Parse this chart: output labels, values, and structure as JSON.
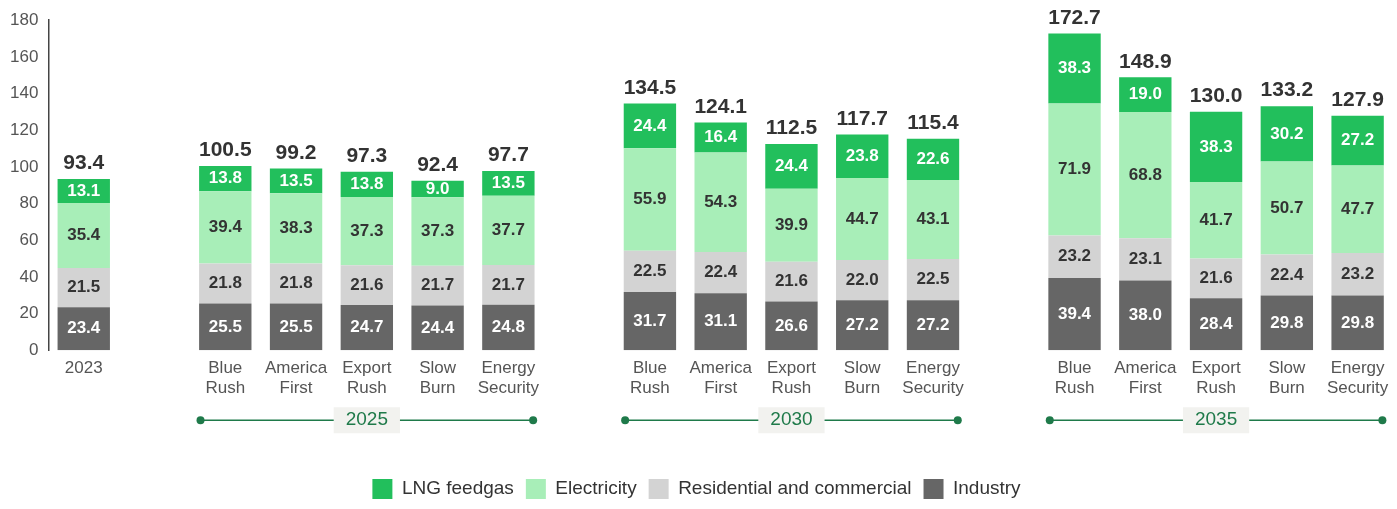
{
  "chart_data": {
    "type": "bar",
    "stacked": true,
    "legend": "bottom",
    "grid": false,
    "categories": [
      "2023",
      null,
      "Blue Rush",
      "America First",
      "Export Rush",
      "Slow Burn",
      "Energy Security",
      null,
      "Blue Rush",
      "America First",
      "Export Rush",
      "Slow Burn",
      "Energy Security",
      null,
      "Blue Rush",
      "America First",
      "Export Rush",
      "Slow Burn",
      "Energy Security"
    ],
    "series": [
      {
        "name": "Industry",
        "color": "#666666",
        "values": [
          23.4,
          null,
          25.5,
          25.5,
          24.7,
          24.4,
          24.8,
          null,
          31.7,
          31.1,
          26.6,
          27.2,
          27.2,
          null,
          39.4,
          38.0,
          28.4,
          29.8,
          29.8
        ],
        "value_labels": [
          "23.4",
          null,
          "25.5",
          "25.5",
          "24.7",
          "24.4",
          "24.8",
          null,
          "31.7",
          "31.1",
          "26.6",
          "27.2",
          "27.2",
          null,
          "39.4",
          "38.0",
          "28.4",
          "29.8",
          "29.8"
        ]
      },
      {
        "name": "Residential and commercial",
        "color": "#d3d3d3",
        "values": [
          21.5,
          null,
          21.8,
          21.8,
          21.6,
          21.7,
          21.7,
          null,
          22.5,
          22.4,
          21.6,
          22.0,
          22.5,
          null,
          23.2,
          23.1,
          21.6,
          22.4,
          23.2
        ],
        "value_labels": [
          "21.5",
          null,
          "21.8",
          "21.8",
          "21.6",
          "21.7",
          "21.7",
          null,
          "22.5",
          "22.4",
          "21.6",
          "22.0",
          "22.5",
          null,
          "23.2",
          "23.1",
          "21.6",
          "22.4",
          "23.2"
        ]
      },
      {
        "name": "Electricity",
        "color": "#a8eeb8",
        "values": [
          35.4,
          null,
          39.4,
          38.3,
          37.3,
          37.3,
          37.7,
          null,
          55.9,
          54.3,
          39.9,
          44.7,
          43.1,
          null,
          71.9,
          68.8,
          41.7,
          50.7,
          47.7
        ],
        "value_labels": [
          "35.4",
          null,
          "39.4",
          "38.3",
          "37.3",
          "37.3",
          "37.7",
          null,
          "55.9",
          "54.3",
          "39.9",
          "44.7",
          "43.1",
          null,
          "71.9",
          "68.8",
          "41.7",
          "50.7",
          "47.7"
        ]
      },
      {
        "name": "LNG feedgas",
        "color": "#22bf5c",
        "values": [
          13.1,
          null,
          13.8,
          13.5,
          13.8,
          9.0,
          13.5,
          null,
          24.4,
          16.4,
          24.4,
          23.8,
          22.6,
          null,
          38.3,
          19.0,
          38.3,
          30.2,
          27.2
        ],
        "value_labels": [
          "13.1",
          null,
          "13.8",
          "13.5",
          "13.8",
          "9.0",
          "13.5",
          null,
          "24.4",
          "16.4",
          "24.4",
          "23.8",
          "22.6",
          null,
          "38.3",
          "19.0",
          "38.3",
          "30.2",
          "27.2"
        ]
      }
    ],
    "totals": [
      "93.4",
      null,
      "100.5",
      "99.2",
      "97.3",
      "92.4",
      "97.7",
      null,
      "134.5",
      "124.1",
      "112.5",
      "117.7",
      "115.4",
      null,
      "172.7",
      "148.9",
      "130.0",
      "133.2",
      "127.9"
    ],
    "annotations": [
      "2025",
      "2030",
      "2035"
    ],
    "ylim": [
      0,
      180
    ],
    "yticks": [
      0,
      20,
      40,
      60,
      80,
      100,
      120,
      140,
      160,
      180
    ]
  }
}
